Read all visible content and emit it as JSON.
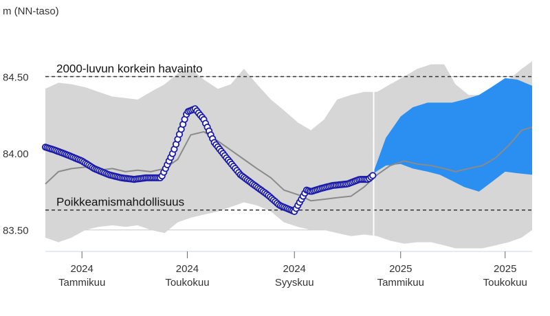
{
  "chart_data": {
    "type": "area",
    "ylabel": "m (NN-taso)",
    "x_range": [
      "2023-11-20",
      "2025-06-01"
    ],
    "ylim": [
      83.36,
      84.82
    ],
    "y_ticks": [
      {
        "value": 84.5,
        "label": "84.50"
      },
      {
        "value": 84.0,
        "label": "84.00"
      },
      {
        "value": 83.5,
        "label": "83.50"
      }
    ],
    "x_ticks": [
      {
        "date": "2024-01-01",
        "year": "2024",
        "month": "Tammikuu"
      },
      {
        "date": "2024-05-01",
        "year": "2024",
        "month": "Toukokuu"
      },
      {
        "date": "2024-09-01",
        "year": "2024",
        "month": "Syyskuu"
      },
      {
        "date": "2025-01-01",
        "year": "2025",
        "month": "Tammikuu"
      },
      {
        "date": "2025-05-01",
        "year": "2025",
        "month": "Toukokuu"
      }
    ],
    "reference_lines": [
      {
        "label": "2000-luvun korkein havainto",
        "value": 84.5
      },
      {
        "label": "Poikkeamismahdollisuus",
        "value": 83.63
      }
    ],
    "current_date": "2024-12-01",
    "historical_range": {
      "x": [
        "2023-11-20",
        "2023-12-05",
        "2023-12-20",
        "2024-01-05",
        "2024-01-20",
        "2024-02-05",
        "2024-02-20",
        "2024-03-05",
        "2024-03-20",
        "2024-04-05",
        "2024-04-20",
        "2024-05-05",
        "2024-05-20",
        "2024-06-05",
        "2024-06-20",
        "2024-07-05",
        "2024-07-20",
        "2024-08-05",
        "2024-08-20",
        "2024-09-05",
        "2024-09-20",
        "2024-10-05",
        "2024-10-20",
        "2024-11-05",
        "2024-11-20",
        "2024-12-05",
        "2024-12-20",
        "2025-01-05",
        "2025-01-20",
        "2025-02-05",
        "2025-02-20",
        "2025-03-05",
        "2025-03-20",
        "2025-04-05",
        "2025-04-20",
        "2025-05-05",
        "2025-05-20",
        "2025-06-01"
      ],
      "upper": [
        84.42,
        84.46,
        84.45,
        84.43,
        84.4,
        84.37,
        84.36,
        84.35,
        84.4,
        84.45,
        84.52,
        84.55,
        84.48,
        84.42,
        84.45,
        84.55,
        84.45,
        84.35,
        84.28,
        84.2,
        84.15,
        84.22,
        84.35,
        84.38,
        84.4,
        84.4,
        84.45,
        84.5,
        84.55,
        84.58,
        84.58,
        84.45,
        84.38,
        84.38,
        84.43,
        84.48,
        84.55,
        84.6
      ],
      "lower": [
        83.45,
        83.42,
        83.45,
        83.5,
        83.52,
        83.53,
        83.52,
        83.53,
        83.5,
        83.48,
        83.55,
        83.58,
        83.6,
        83.62,
        83.65,
        83.68,
        83.66,
        83.62,
        83.55,
        83.52,
        83.5,
        83.5,
        83.48,
        83.46,
        83.47,
        83.46,
        83.43,
        83.41,
        83.42,
        83.42,
        83.4,
        83.38,
        83.38,
        83.38,
        83.4,
        83.42,
        83.45,
        83.5
      ]
    },
    "series": [
      {
        "name": "",
        "kind": "mean",
        "color": "#8a8a8a",
        "x": [
          "2023-11-20",
          "2023-12-05",
          "2023-12-20",
          "2024-01-05",
          "2024-01-20",
          "2024-02-05",
          "2024-02-20",
          "2024-03-05",
          "2024-03-20",
          "2024-04-05",
          "2024-04-20",
          "2024-05-05",
          "2024-05-20",
          "2024-06-05",
          "2024-06-20",
          "2024-07-05",
          "2024-07-20",
          "2024-08-05",
          "2024-08-20",
          "2024-09-05",
          "2024-09-20",
          "2024-10-05",
          "2024-10-20",
          "2024-11-05",
          "2024-11-20",
          "2024-12-05",
          "2024-12-20",
          "2025-01-05",
          "2025-01-20",
          "2025-02-05",
          "2025-02-20",
          "2025-03-05",
          "2025-03-20",
          "2025-04-05",
          "2025-04-20",
          "2025-05-05",
          "2025-05-20",
          "2025-06-01"
        ],
        "values": [
          83.8,
          83.88,
          83.9,
          83.91,
          83.89,
          83.9,
          83.88,
          83.89,
          83.88,
          83.9,
          83.96,
          84.12,
          84.14,
          84.08,
          84.02,
          83.96,
          83.9,
          83.84,
          83.76,
          83.73,
          83.69,
          83.7,
          83.71,
          83.72,
          83.78,
          83.86,
          83.92,
          83.95,
          83.93,
          83.92,
          83.9,
          83.88,
          83.9,
          83.92,
          83.97,
          84.05,
          84.15,
          84.17
        ]
      },
      {
        "name": "",
        "kind": "observed",
        "color": "#1a1aa8",
        "x": [
          "2023-11-20",
          "2023-12-01",
          "2023-12-15",
          "2024-01-01",
          "2024-01-15",
          "2024-02-01",
          "2024-02-15",
          "2024-03-01",
          "2024-03-15",
          "2024-04-01",
          "2024-04-15",
          "2024-05-01",
          "2024-05-10",
          "2024-05-20",
          "2024-06-01",
          "2024-06-15",
          "2024-07-01",
          "2024-07-15",
          "2024-08-01",
          "2024-08-15",
          "2024-09-01",
          "2024-09-05",
          "2024-09-10",
          "2024-09-15",
          "2024-09-20",
          "2024-10-01",
          "2024-10-15",
          "2024-11-01",
          "2024-11-15",
          "2024-11-25",
          "2024-12-01"
        ],
        "values": [
          84.04,
          84.02,
          83.99,
          83.95,
          83.9,
          83.86,
          83.84,
          83.83,
          83.84,
          83.84,
          84.01,
          84.27,
          84.29,
          84.22,
          84.07,
          83.97,
          83.86,
          83.8,
          83.73,
          83.66,
          83.62,
          83.66,
          83.71,
          83.76,
          83.75,
          83.77,
          83.79,
          83.8,
          83.83,
          83.83,
          83.86
        ]
      }
    ],
    "forecast_band": {
      "color": "#2a8ff0",
      "x": [
        "2024-12-01",
        "2024-12-15",
        "2025-01-01",
        "2025-01-15",
        "2025-02-01",
        "2025-02-15",
        "2025-03-01",
        "2025-03-15",
        "2025-04-01",
        "2025-04-15",
        "2025-05-01",
        "2025-05-15",
        "2025-06-01"
      ],
      "upper": [
        83.88,
        84.1,
        84.24,
        84.3,
        84.33,
        84.33,
        84.33,
        84.35,
        84.38,
        84.43,
        84.49,
        84.48,
        84.44
      ],
      "lower": [
        83.87,
        83.92,
        83.93,
        83.9,
        83.88,
        83.86,
        83.82,
        83.78,
        83.75,
        83.81,
        83.88,
        83.87,
        83.86
      ]
    }
  }
}
